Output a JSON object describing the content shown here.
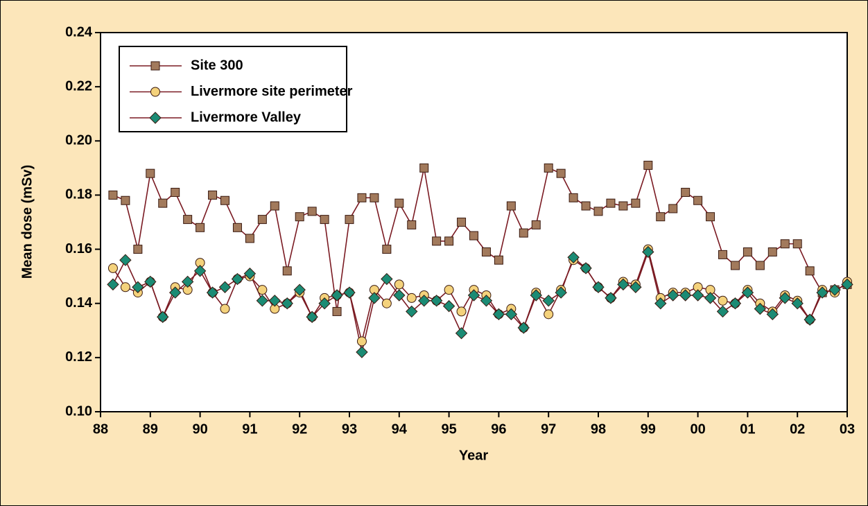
{
  "chart_data": {
    "type": "line",
    "y_label": "Mean dose (mSv)",
    "x_label": "Year",
    "x": [
      1988.25,
      1988.5,
      1988.75,
      1989,
      1989.25,
      1989.5,
      1989.75,
      1990,
      1990.25,
      1990.5,
      1990.75,
      1991,
      1991.25,
      1991.5,
      1991.75,
      1992,
      1992.25,
      1992.5,
      1992.75,
      1993,
      1993.25,
      1993.5,
      1993.75,
      1994,
      1994.25,
      1994.5,
      1994.75,
      1995,
      1995.25,
      1995.5,
      1995.75,
      1996,
      1996.25,
      1996.5,
      1996.75,
      1997,
      1997.25,
      1997.5,
      1997.75,
      1998,
      1998.25,
      1998.5,
      1998.75,
      1999,
      1999.25,
      1999.5,
      1999.75,
      2000,
      2000.25,
      2000.5,
      2000.75,
      2001,
      2001.25,
      2001.5,
      2001.75,
      2002,
      2002.25,
      2002.5,
      2002.75,
      2003
    ],
    "series": [
      {
        "name": "Site 300",
        "color": "#a27a5c",
        "marker": "square",
        "values": [
          0.18,
          0.178,
          0.16,
          0.188,
          0.177,
          0.181,
          0.171,
          0.168,
          0.18,
          0.178,
          0.168,
          0.164,
          0.171,
          0.176,
          0.152,
          0.172,
          0.174,
          0.171,
          0.137,
          0.171,
          0.179,
          0.179,
          0.16,
          0.177,
          0.169,
          0.19,
          0.163,
          0.163,
          0.17,
          0.165,
          0.159,
          0.156,
          0.176,
          0.166,
          0.169,
          0.19,
          0.188,
          0.179,
          0.176,
          0.174,
          0.177,
          0.176,
          0.177,
          0.191,
          0.172,
          0.175,
          0.181,
          0.178,
          0.172,
          0.158,
          0.154,
          0.159,
          0.154,
          0.159,
          0.162,
          0.162,
          0.152,
          0.144,
          0.145,
          0.147
        ]
      },
      {
        "name": "Livermore site perimeter",
        "color": "#f4d27c",
        "marker": "circle",
        "values": [
          0.153,
          0.146,
          0.144,
          0.148,
          0.135,
          0.146,
          0.145,
          0.155,
          0.144,
          0.138,
          0.149,
          0.15,
          0.145,
          0.138,
          0.14,
          0.144,
          0.135,
          0.142,
          0.143,
          0.144,
          0.126,
          0.145,
          0.14,
          0.147,
          0.142,
          0.143,
          0.141,
          0.145,
          0.137,
          0.145,
          0.143,
          0.136,
          0.138,
          0.131,
          0.144,
          0.136,
          0.145,
          0.156,
          0.153,
          0.146,
          0.142,
          0.148,
          0.147,
          0.16,
          0.142,
          0.144,
          0.144,
          0.146,
          0.145,
          0.141,
          0.14,
          0.145,
          0.14,
          0.137,
          0.143,
          0.141,
          0.134,
          0.145,
          0.144,
          0.148
        ]
      },
      {
        "name": "Livermore Valley",
        "color": "#1b8b74",
        "marker": "diamond",
        "values": [
          0.147,
          0.156,
          0.146,
          0.148,
          0.135,
          0.144,
          0.148,
          0.152,
          0.144,
          0.146,
          0.149,
          0.151,
          0.141,
          0.141,
          0.14,
          0.145,
          0.135,
          0.14,
          0.143,
          0.144,
          0.122,
          0.142,
          0.149,
          0.143,
          0.137,
          0.141,
          0.141,
          0.139,
          0.129,
          0.143,
          0.141,
          0.136,
          0.136,
          0.131,
          0.143,
          0.141,
          0.144,
          0.157,
          0.153,
          0.146,
          0.142,
          0.147,
          0.146,
          0.159,
          0.14,
          0.143,
          0.143,
          0.143,
          0.142,
          0.137,
          0.14,
          0.144,
          0.138,
          0.136,
          0.142,
          0.14,
          0.134,
          0.144,
          0.145,
          0.147
        ]
      }
    ],
    "line_color": "#7a1a22",
    "xlim": [
      1988,
      2003
    ],
    "xticks": [
      {
        "value": 1988,
        "label": "88"
      },
      {
        "value": 1989,
        "label": "89"
      },
      {
        "value": 1990,
        "label": "90"
      },
      {
        "value": 1991,
        "label": "91"
      },
      {
        "value": 1992,
        "label": "92"
      },
      {
        "value": 1993,
        "label": "93"
      },
      {
        "value": 1994,
        "label": "94"
      },
      {
        "value": 1995,
        "label": "95"
      },
      {
        "value": 1996,
        "label": "96"
      },
      {
        "value": 1997,
        "label": "97"
      },
      {
        "value": 1998,
        "label": "98"
      },
      {
        "value": 1999,
        "label": "99"
      },
      {
        "value": 2000,
        "label": "00"
      },
      {
        "value": 2001,
        "label": "01"
      },
      {
        "value": 2002,
        "label": "02"
      },
      {
        "value": 2003,
        "label": "03"
      }
    ],
    "ylim": [
      0.1,
      0.24
    ],
    "yticks": [
      {
        "value": 0.1,
        "label": "0.10"
      },
      0.12,
      0.14,
      0.16,
      0.18,
      {
        "value": 0.2,
        "label": "0.20"
      },
      0.22,
      0.24
    ],
    "legend": "upper-left"
  }
}
